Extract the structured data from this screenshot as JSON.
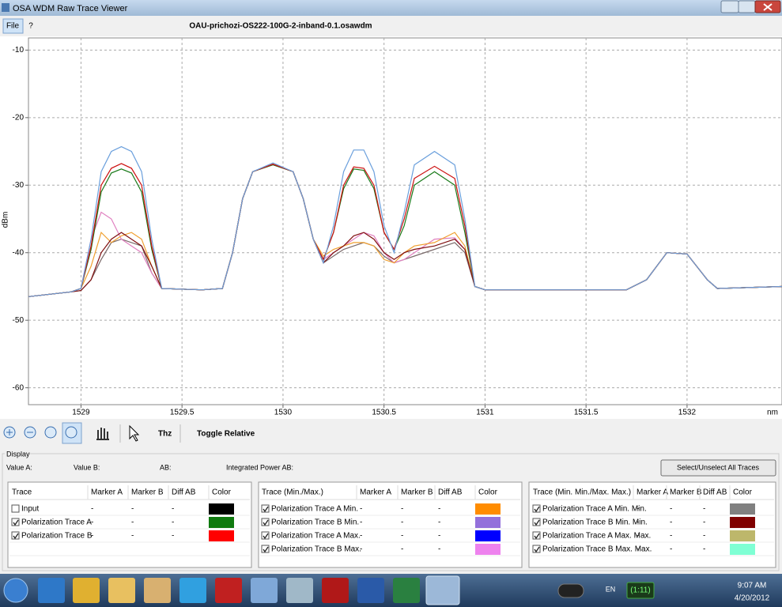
{
  "window": {
    "title": "OSA WDM Raw Trace Viewer"
  },
  "menu": [
    "File",
    "?"
  ],
  "file_name": "OAU-prichozi-OS222-100G-2-inband-0.1.osawdm",
  "chart_data": {
    "type": "line",
    "y_label": "dBm",
    "x_label": "nm",
    "xlim": [
      1528.74,
      1532.47
    ],
    "ylim": [
      -62.5,
      -8.2
    ],
    "xticks": [
      1529,
      1529.5,
      1530,
      1530.5,
      1531,
      1531.5,
      1532
    ],
    "yticks": [
      -10,
      -20,
      -30,
      -40,
      -50,
      -60
    ],
    "grid": true,
    "x": [
      1528.74,
      1528.95,
      1529.0,
      1529.05,
      1529.1,
      1529.15,
      1529.2,
      1529.25,
      1529.3,
      1529.35,
      1529.4,
      1529.6,
      1529.7,
      1529.75,
      1529.8,
      1529.85,
      1529.95,
      1530.05,
      1530.1,
      1530.15,
      1530.2,
      1530.25,
      1530.3,
      1530.35,
      1530.4,
      1530.45,
      1530.5,
      1530.55,
      1530.6,
      1530.65,
      1530.75,
      1530.85,
      1530.9,
      1530.95,
      1531.0,
      1531.7,
      1531.8,
      1531.9,
      1532.0,
      1532.1,
      1532.15,
      1532.47
    ],
    "series": [
      {
        "color": "#7a6a6a",
        "values": [
          -46.5,
          -45.8,
          -45.6,
          -44,
          -41,
          -38.5,
          -38,
          -38.5,
          -39,
          -43,
          -45.3,
          -45.5,
          -45.3,
          -40,
          -32,
          -28,
          -26.9,
          -28,
          -32,
          -38,
          -41.5,
          -40.5,
          -39.5,
          -39,
          -38.5,
          -39,
          -40.5,
          -41.5,
          -41,
          -40.5,
          -39.5,
          -38.5,
          -40,
          -45,
          -45.5,
          -45.5,
          -44,
          -40,
          -40.2,
          -44,
          -45.3,
          -45
        ]
      },
      {
        "color": "#e080c0",
        "values": [
          -46.5,
          -45.8,
          -45.3,
          -38,
          -34,
          -35,
          -38,
          -39,
          -40,
          -43,
          -45.3,
          -45.5,
          -45.3,
          -40,
          -32,
          -28,
          -26.9,
          -28,
          -32,
          -38,
          -41,
          -40,
          -39,
          -38,
          -37,
          -37.5,
          -40,
          -41.5,
          -41,
          -40,
          -38,
          -37.8,
          -39.5,
          -45,
          -45.5,
          -45.5,
          -44,
          -40,
          -40.2,
          -44,
          -45.3,
          -45
        ]
      },
      {
        "color": "#f0a030",
        "values": [
          -46.5,
          -45.8,
          -45.3,
          -42,
          -37,
          -38.5,
          -37.5,
          -37,
          -38,
          -42,
          -45.3,
          -45.5,
          -45.3,
          -40,
          -32,
          -28,
          -26.9,
          -28,
          -32,
          -38,
          -40.5,
          -39.5,
          -39,
          -38.5,
          -38.5,
          -39,
          -41,
          -41.5,
          -40,
          -39,
          -38.5,
          -37,
          -39,
          -45,
          -45.5,
          -45.5,
          -44,
          -40,
          -40.2,
          -44,
          -45.3,
          -45
        ]
      },
      {
        "color": "#801010",
        "values": [
          -46.5,
          -45.8,
          -45.6,
          -44,
          -40,
          -38,
          -37,
          -38,
          -39,
          -42,
          -45.3,
          -45.5,
          -45.3,
          -40,
          -32,
          -28,
          -26.9,
          -28,
          -32,
          -38,
          -41.5,
          -40,
          -39,
          -37.5,
          -37,
          -38,
          -40,
          -41,
          -40,
          -39.5,
          -39,
          -38,
          -39.5,
          -45,
          -45.5,
          -45.5,
          -44,
          -40,
          -40.2,
          -44,
          -45.3,
          -45
        ]
      },
      {
        "color": "#1a7a1a",
        "values": [
          -46.5,
          -45.8,
          -45.3,
          -39.5,
          -31,
          -28.2,
          -27.6,
          -28.2,
          -31,
          -39.5,
          -45.3,
          -45.5,
          -45.3,
          -40,
          -32,
          -28,
          -27,
          -28,
          -32,
          -38,
          -41,
          -37,
          -30.5,
          -27.6,
          -27.8,
          -30.5,
          -37,
          -39.5,
          -36,
          -30,
          -28,
          -30,
          -37,
          -45,
          -45.5,
          -45.5,
          -44,
          -40,
          -40.2,
          -44,
          -45.3,
          -45
        ]
      },
      {
        "color": "#cc1010",
        "values": [
          -46.5,
          -45.8,
          -45.3,
          -39,
          -30,
          -27.5,
          -26.8,
          -27.5,
          -30,
          -39,
          -45.3,
          -45.5,
          -45.3,
          -40,
          -32,
          -28,
          -26.9,
          -28,
          -32,
          -38,
          -41,
          -37,
          -30,
          -27.3,
          -27.5,
          -30,
          -37,
          -39.5,
          -35,
          -29,
          -27.2,
          -29,
          -36,
          -45,
          -45.5,
          -45.5,
          -44,
          -40,
          -40.2,
          -44,
          -45.3,
          -45
        ]
      },
      {
        "color": "#6a9fdc",
        "values": [
          -46.5,
          -45.8,
          -45.3,
          -38,
          -28,
          -25,
          -24.3,
          -25,
          -28,
          -38,
          -45.3,
          -45.5,
          -45.3,
          -40,
          -32,
          -28,
          -26.7,
          -28,
          -32,
          -38,
          -41.5,
          -36,
          -28,
          -24.8,
          -24.8,
          -28,
          -36,
          -40,
          -34,
          -27,
          -25,
          -27,
          -35,
          -45,
          -45.5,
          -45.5,
          -44,
          -40,
          -40.2,
          -44,
          -45.3,
          -45
        ]
      }
    ]
  },
  "toolbar": {
    "thz": "Thz",
    "toggle": "Toggle Relative"
  },
  "display": {
    "title": "Display",
    "value_a": "Value A:",
    "value_b": "Value B:",
    "ab": "AB:",
    "integrated": "Integrated Power AB:",
    "select_button": "Select/Unselect All Traces"
  },
  "tables": [
    {
      "headers": [
        "Trace",
        "Marker A",
        "Marker B",
        "Diff AB",
        "Color"
      ],
      "rows": [
        {
          "checked": false,
          "name": "Input",
          "marker_a": "-",
          "marker_b": "-",
          "diff": "-",
          "color": "#000000"
        },
        {
          "checked": true,
          "name": "Polarization Trace A",
          "marker_a": "-",
          "marker_b": "-",
          "diff": "-",
          "color": "#0f7a0f"
        },
        {
          "checked": true,
          "name": "Polarization Trace B",
          "marker_a": "-",
          "marker_b": "-",
          "diff": "-",
          "color": "#ff0000"
        }
      ]
    },
    {
      "headers": [
        "Trace (Min./Max.)",
        "Marker A",
        "Marker B",
        "Diff AB",
        "Color"
      ],
      "rows": [
        {
          "checked": true,
          "name": "Polarization Trace A Min.",
          "marker_a": "-",
          "marker_b": "-",
          "diff": "-",
          "color": "#ff8c00"
        },
        {
          "checked": true,
          "name": "Polarization Trace B Min.",
          "marker_a": "-",
          "marker_b": "-",
          "diff": "-",
          "color": "#9370db"
        },
        {
          "checked": true,
          "name": "Polarization Trace A Max.",
          "marker_a": "-",
          "marker_b": "-",
          "diff": "-",
          "color": "#0000ff"
        },
        {
          "checked": true,
          "name": "Polarization Trace B Max.",
          "marker_a": "-",
          "marker_b": "-",
          "diff": "-",
          "color": "#ee82ee"
        }
      ]
    },
    {
      "headers": [
        "Trace (Min. Min./Max. Max.)",
        "Marker A",
        "Marker B",
        "Diff AB",
        "Color"
      ],
      "rows": [
        {
          "checked": true,
          "name": "Polarization Trace A Min. Min.",
          "marker_a": "-",
          "marker_b": "-",
          "diff": "-",
          "color": "#808080"
        },
        {
          "checked": true,
          "name": "Polarization Trace B Min. Min.",
          "marker_a": "-",
          "marker_b": "-",
          "diff": "-",
          "color": "#800000"
        },
        {
          "checked": true,
          "name": "Polarization Trace A Max. Max.",
          "marker_a": "-",
          "marker_b": "-",
          "diff": "-",
          "color": "#bdb76b"
        },
        {
          "checked": true,
          "name": "Polarization Trace B Max. Max.",
          "marker_a": "-",
          "marker_b": "-",
          "diff": "-",
          "color": "#7fffd4"
        }
      ]
    }
  ],
  "taskbar": {
    "language": "EN",
    "battery": "(1:11)",
    "time": "9:07 AM",
    "date": "4/20/2012"
  }
}
